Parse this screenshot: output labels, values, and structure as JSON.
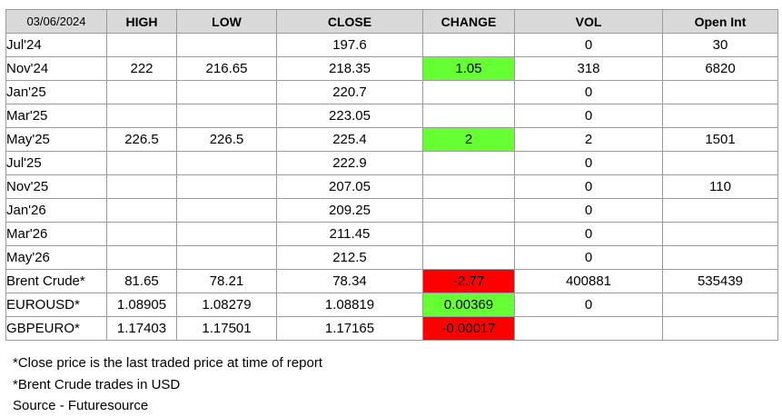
{
  "header": {
    "date": "03/06/2024",
    "columns": [
      "HIGH",
      "LOW",
      "CLOSE",
      "CHANGE",
      "VOL",
      "Open Int"
    ]
  },
  "rows": [
    {
      "name": "Jul'24",
      "high": "",
      "low": "",
      "close": "197.6",
      "change": "",
      "change_sign": "none",
      "vol": "0",
      "oi": "30"
    },
    {
      "name": "Nov'24",
      "high": "222",
      "low": "216.65",
      "close": "218.35",
      "change": "1.05",
      "change_sign": "pos",
      "vol": "318",
      "oi": "6820"
    },
    {
      "name": "Jan'25",
      "high": "",
      "low": "",
      "close": "220.7",
      "change": "",
      "change_sign": "none",
      "vol": "0",
      "oi": ""
    },
    {
      "name": "Mar'25",
      "high": "",
      "low": "",
      "close": "223.05",
      "change": "",
      "change_sign": "none",
      "vol": "0",
      "oi": ""
    },
    {
      "name": "May'25",
      "high": "226.5",
      "low": "226.5",
      "close": "225.4",
      "change": "2",
      "change_sign": "pos",
      "vol": "2",
      "oi": "1501"
    },
    {
      "name": "Jul'25",
      "high": "",
      "low": "",
      "close": "222.9",
      "change": "",
      "change_sign": "none",
      "vol": "0",
      "oi": ""
    },
    {
      "name": "Nov'25",
      "high": "",
      "low": "",
      "close": "207.05",
      "change": "",
      "change_sign": "none",
      "vol": "0",
      "oi": "110"
    },
    {
      "name": "Jan'26",
      "high": "",
      "low": "",
      "close": "209.25",
      "change": "",
      "change_sign": "none",
      "vol": "0",
      "oi": ""
    },
    {
      "name": "Mar'26",
      "high": "",
      "low": "",
      "close": "211.45",
      "change": "",
      "change_sign": "none",
      "vol": "0",
      "oi": ""
    },
    {
      "name": "May'26",
      "high": "",
      "low": "",
      "close": "212.5",
      "change": "",
      "change_sign": "none",
      "vol": "0",
      "oi": ""
    },
    {
      "name": "Brent Crude*",
      "high": "81.65",
      "low": "78.21",
      "close": "78.34",
      "change": "-2.77",
      "change_sign": "neg",
      "vol": "400881",
      "oi": "535439"
    },
    {
      "name": "EUROUSD*",
      "high": "1.08905",
      "low": "1.08279",
      "close": "1.08819",
      "change": "0.00369",
      "change_sign": "pos",
      "vol": "0",
      "oi": ""
    },
    {
      "name": "GBPEURO*",
      "high": "1.17403",
      "low": "1.17501",
      "close": "1.17165",
      "change": "-0.00017",
      "change_sign": "neg",
      "vol": "",
      "oi": ""
    }
  ],
  "notes": [
    "*Close price is the last traded price at time of report",
    "*Brent Crude trades in USD",
    "Source -  Futuresource"
  ],
  "colors": {
    "header_bg": "#d9d9d9",
    "positive_change": "#66ff33",
    "negative_change": "#ff0000",
    "border": "#9a9a9a"
  }
}
